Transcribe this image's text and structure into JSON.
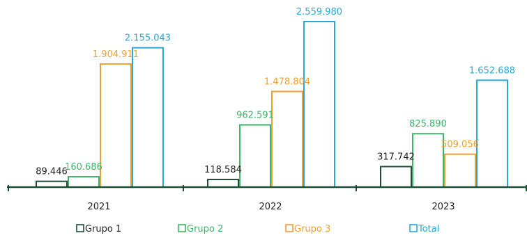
{
  "chart_data": {
    "type": "bar",
    "categories": [
      "2021",
      "2022",
      "2023"
    ],
    "series": [
      {
        "name": "Grupo 1",
        "color": "#1d4d35",
        "values": [
          89446,
          118584,
          317742
        ],
        "labels": [
          "89.446",
          "118.584",
          "317.742"
        ]
      },
      {
        "name": "Grupo 2",
        "color": "#3cb56a",
        "values": [
          160686,
          962591,
          825890
        ],
        "labels": [
          "160.686",
          "962.591",
          "825.890"
        ]
      },
      {
        "name": "Grupo 3",
        "color": "#f0a030",
        "values": [
          1904911,
          1478804,
          509056
        ],
        "labels": [
          "1.904.911",
          "1.478.804",
          "509.056"
        ]
      },
      {
        "name": "Total",
        "color": "#2aa8d8",
        "values": [
          2155043,
          2559980,
          1652688
        ],
        "labels": [
          "2.155.043",
          "2.559.980",
          "1.652.688"
        ]
      }
    ],
    "ylim": [
      0,
      2559980
    ],
    "axis_color": "#1d4d35",
    "legend_position": "bottom",
    "gridlines": false
  }
}
